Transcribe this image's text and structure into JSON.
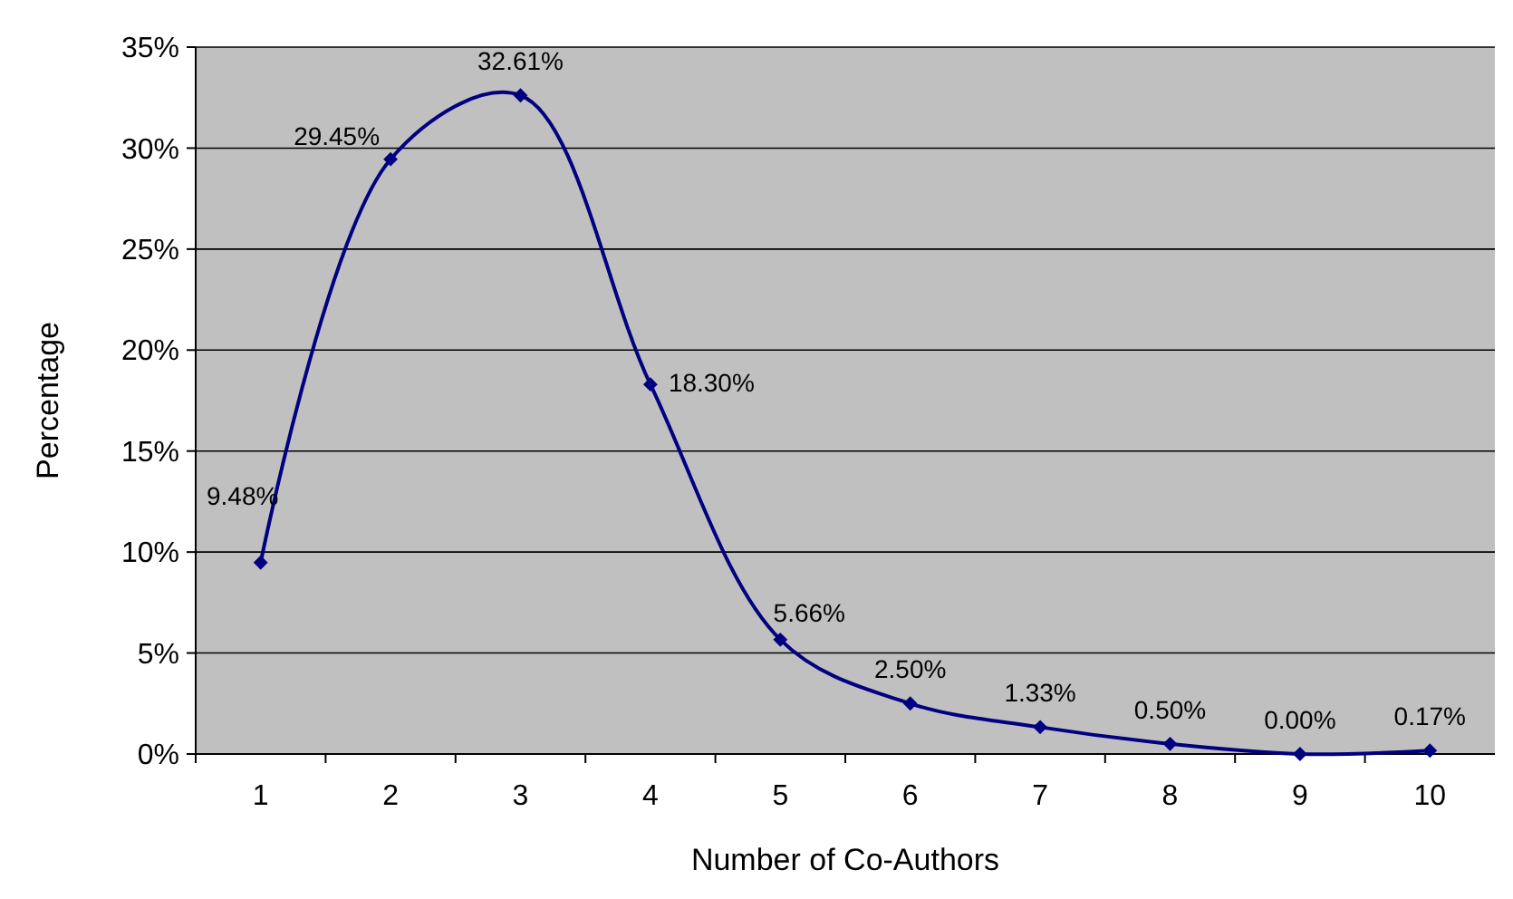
{
  "chart_data": {
    "type": "line",
    "xlabel": "Number of Co-Authors",
    "ylabel": "Percentage",
    "categories": [
      "1",
      "2",
      "3",
      "4",
      "5",
      "6",
      "7",
      "8",
      "9",
      "10"
    ],
    "series": [
      {
        "color": "#000080",
        "values": [
          9.48,
          29.45,
          32.61,
          18.3,
          5.66,
          2.5,
          1.33,
          0.5,
          0.0,
          0.17
        ],
        "value_labels": [
          "9.48%",
          "29.45%",
          "32.61%",
          "18.30%",
          "5.66%",
          "2.50%",
          "1.33%",
          "0.50%",
          "0.00%",
          "0.17%"
        ]
      }
    ],
    "ylim": [
      0,
      35
    ],
    "yticks": [
      {
        "value": 0,
        "label": "0%"
      },
      {
        "value": 5,
        "label": "5%"
      },
      {
        "value": 10,
        "label": "10%"
      },
      {
        "value": 15,
        "label": "15%"
      },
      {
        "value": 20,
        "label": "20%"
      },
      {
        "value": 25,
        "label": "25%"
      },
      {
        "value": 30,
        "label": "30%"
      },
      {
        "value": 35,
        "label": "35%"
      }
    ],
    "grid": "y",
    "marker": "diamond",
    "line_style": "solid"
  }
}
